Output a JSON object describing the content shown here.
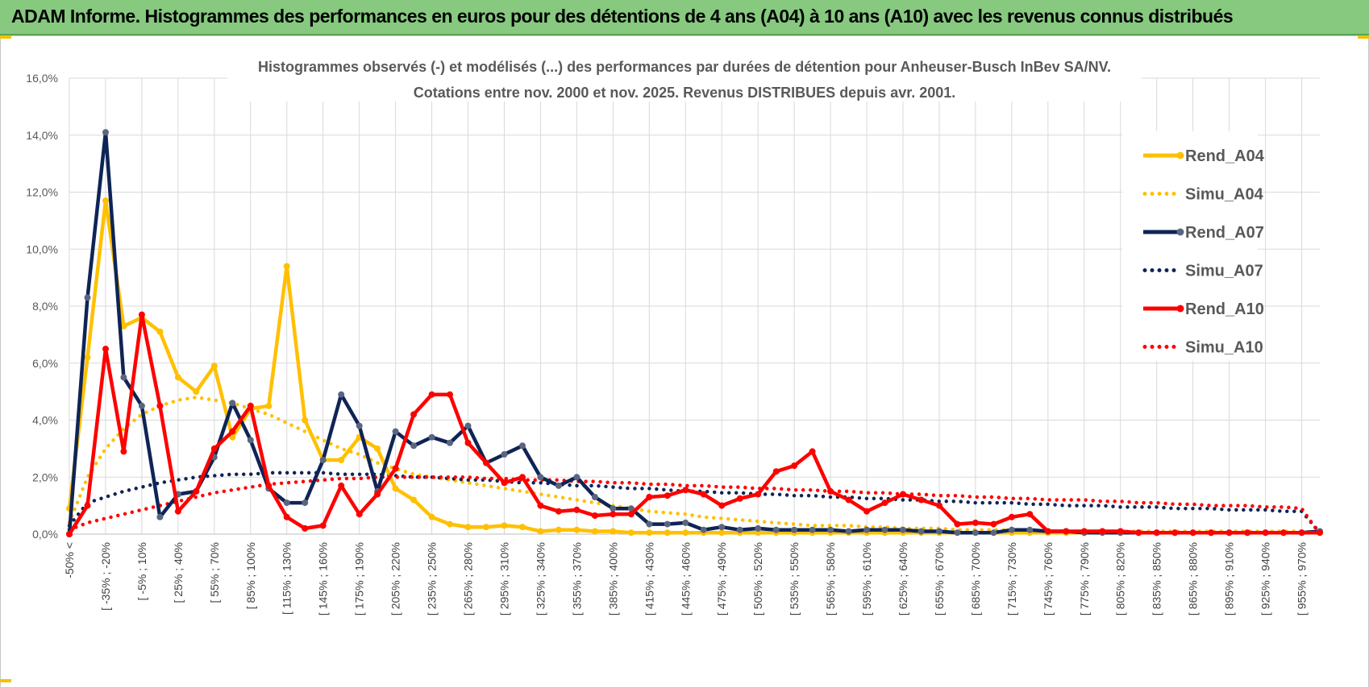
{
  "banner": {
    "title": "ADAM Informe. Histogrammes des performances en euros pour des détentions de 4 ans (A04) à 10 ans (A10) avec les revenus connus distribués"
  },
  "colors": {
    "banner_bg": "#86c97f",
    "a04": "#FFC000",
    "a07": "#0F2456",
    "a10": "#FF0000",
    "grid": "#D9D9D9"
  },
  "chart_data": {
    "type": "line",
    "title": "Histogrammes observés (-) et modélisés (...) des performances par durées de détention pour Anheuser-Busch InBev SA/NV.",
    "subtitle": "Cotations entre nov. 2000 et nov. 2025. Revenus DISTRIBUES depuis avr. 2001.",
    "ylim": [
      0,
      16
    ],
    "y_ticks": [
      "0,0%",
      "2,0%",
      "4,0%",
      "6,0%",
      "8,0%",
      "10,0%",
      "12,0%",
      "14,0%",
      "16,0%"
    ],
    "x_tick_labels": [
      "-50% <",
      "[ -35% ; -20%",
      "[ -5% ; 10%",
      "[ 25% ; 40%",
      "[ 55% ; 70%",
      "[ 85% ; 100%",
      "[ 115% ; 130%",
      "[ 145% ; 160%",
      "[ 175% ; 190%",
      "[ 205% ; 220%",
      "[ 235% ; 250%",
      "[ 265% ; 280%",
      "[ 295% ; 310%",
      "[ 325% ; 340%",
      "[ 355% ; 370%",
      "[ 385% ; 400%",
      "[ 415% ; 430%",
      "[ 445% ; 460%",
      "[ 475% ; 490%",
      "[ 505% ; 520%",
      "[ 535% ; 550%",
      "[ 565% ; 580%",
      "[ 595% ; 610%",
      "[ 625% ; 640%",
      "[ 655% ; 670%",
      "[ 685% ; 700%",
      "[ 715% ; 730%",
      "[ 745% ; 760%",
      "[ 775% ; 790%",
      "[ 805% ; 820%",
      "[ 835% ; 850%",
      "[ 865% ; 880%",
      "[ 895% ; 910%",
      "[ 925% ; 940%",
      "[ 955% ; 970%"
    ],
    "n_points": 70,
    "legend": [
      "Rend_A04",
      "Simu_A04",
      "Rend_A07",
      "Simu_A07",
      "Rend_A10",
      "Simu_A10"
    ],
    "series": [
      {
        "name": "Rend_A04",
        "style": "solid",
        "color": "#FFC000",
        "values": [
          0.9,
          6.2,
          11.7,
          7.3,
          7.6,
          7.1,
          5.5,
          5.0,
          5.9,
          3.4,
          4.4,
          4.5,
          9.4,
          4.0,
          2.6,
          2.6,
          3.4,
          3.0,
          1.6,
          1.2,
          0.6,
          0.35,
          0.25,
          0.25,
          0.3,
          0.25,
          0.1,
          0.15,
          0.15,
          0.1,
          0.1,
          0.05,
          0.05,
          0.05,
          0.05,
          0.05,
          0.05,
          0.05,
          0.05,
          0.05,
          0.05,
          0.05,
          0.05,
          0.05,
          0.05,
          0.05,
          0.05,
          0.05,
          0.05,
          0.05,
          0.05,
          0.05,
          0.05,
          0.05,
          0.05,
          0.05,
          0.05,
          0.05,
          0.05,
          0.05,
          0.05,
          0.05,
          0.05,
          0.05,
          0.05,
          0.05,
          0.05,
          0.05,
          0.05,
          0.05
        ]
      },
      {
        "name": "Simu_A04",
        "style": "dotted",
        "color": "#FFC000",
        "values": [
          0.4,
          2.0,
          3.0,
          3.7,
          4.2,
          4.5,
          4.7,
          4.8,
          4.7,
          4.6,
          4.4,
          4.2,
          3.9,
          3.6,
          3.3,
          3.0,
          2.8,
          2.5,
          2.3,
          2.1,
          2.0,
          1.9,
          1.8,
          1.7,
          1.6,
          1.5,
          1.4,
          1.3,
          1.2,
          1.1,
          1.0,
          0.9,
          0.8,
          0.75,
          0.7,
          0.6,
          0.55,
          0.5,
          0.45,
          0.4,
          0.35,
          0.3,
          0.3,
          0.3,
          0.25,
          0.25,
          0.2,
          0.2,
          0.2,
          0.15,
          0.15,
          0.15,
          0.15,
          0.1,
          0.1,
          0.1,
          0.1,
          0.1,
          0.1,
          0.1,
          0.1,
          0.1,
          0.1,
          0.1,
          0.1,
          0.1,
          0.1,
          0.1,
          0.1,
          0.05
        ]
      },
      {
        "name": "Rend_A07",
        "style": "solid",
        "color": "#0F2456",
        "values": [
          0.0,
          8.3,
          14.1,
          5.5,
          4.5,
          0.6,
          1.4,
          1.5,
          2.7,
          4.6,
          3.3,
          1.6,
          1.1,
          1.1,
          2.6,
          4.9,
          3.8,
          1.5,
          3.6,
          3.1,
          3.4,
          3.2,
          3.8,
          2.5,
          2.8,
          3.1,
          2.0,
          1.7,
          2.0,
          1.3,
          0.9,
          0.9,
          0.35,
          0.35,
          0.4,
          0.15,
          0.25,
          0.15,
          0.2,
          0.15,
          0.15,
          0.15,
          0.15,
          0.1,
          0.15,
          0.15,
          0.15,
          0.1,
          0.1,
          0.05,
          0.05,
          0.05,
          0.15,
          0.15,
          0.1,
          0.1,
          0.05,
          0.05,
          0.05,
          0.05,
          0.05,
          0.05,
          0.05,
          0.05,
          0.05,
          0.05,
          0.05,
          0.05,
          0.05,
          0.1
        ]
      },
      {
        "name": "Simu_A07",
        "style": "dotted",
        "color": "#0F2456",
        "values": [
          0.3,
          1.1,
          1.3,
          1.5,
          1.65,
          1.8,
          1.9,
          2.0,
          2.05,
          2.1,
          2.1,
          2.15,
          2.15,
          2.15,
          2.15,
          2.1,
          2.1,
          2.1,
          2.05,
          2.0,
          2.0,
          1.95,
          1.9,
          1.9,
          1.85,
          1.8,
          1.8,
          1.75,
          1.7,
          1.7,
          1.65,
          1.6,
          1.6,
          1.55,
          1.5,
          1.5,
          1.45,
          1.45,
          1.4,
          1.4,
          1.35,
          1.35,
          1.3,
          1.3,
          1.25,
          1.25,
          1.2,
          1.2,
          1.15,
          1.15,
          1.1,
          1.1,
          1.1,
          1.05,
          1.05,
          1.0,
          1.0,
          1.0,
          0.95,
          0.95,
          0.95,
          0.9,
          0.9,
          0.9,
          0.85,
          0.85,
          0.85,
          0.8,
          0.8,
          0.05
        ]
      },
      {
        "name": "Rend_A10",
        "style": "solid",
        "color": "#FF0000",
        "values": [
          0.0,
          1.0,
          6.5,
          2.9,
          7.7,
          4.5,
          0.8,
          1.5,
          3.0,
          3.6,
          4.5,
          1.7,
          0.6,
          0.2,
          0.3,
          1.7,
          0.7,
          1.4,
          2.3,
          4.2,
          4.9,
          4.9,
          3.2,
          2.5,
          1.8,
          2.0,
          1.0,
          0.8,
          0.85,
          0.65,
          0.7,
          0.7,
          1.3,
          1.35,
          1.55,
          1.4,
          1.0,
          1.25,
          1.4,
          2.2,
          2.4,
          2.9,
          1.5,
          1.2,
          0.8,
          1.1,
          1.4,
          1.2,
          1.0,
          0.35,
          0.4,
          0.35,
          0.6,
          0.7,
          0.1,
          0.1,
          0.1,
          0.1,
          0.1,
          0.05,
          0.05,
          0.05,
          0.05,
          0.05,
          0.05,
          0.05,
          0.05,
          0.05,
          0.05,
          0.05
        ]
      },
      {
        "name": "Simu_A10",
        "style": "dotted",
        "color": "#FF0000",
        "values": [
          0.15,
          0.4,
          0.55,
          0.7,
          0.85,
          1.0,
          1.15,
          1.3,
          1.45,
          1.55,
          1.65,
          1.75,
          1.8,
          1.85,
          1.9,
          1.95,
          1.95,
          2.0,
          2.0,
          2.0,
          2.0,
          2.0,
          2.0,
          1.95,
          1.95,
          1.9,
          1.9,
          1.9,
          1.85,
          1.85,
          1.8,
          1.8,
          1.75,
          1.75,
          1.7,
          1.7,
          1.65,
          1.65,
          1.6,
          1.6,
          1.55,
          1.55,
          1.5,
          1.5,
          1.45,
          1.45,
          1.4,
          1.4,
          1.35,
          1.35,
          1.3,
          1.3,
          1.25,
          1.25,
          1.2,
          1.2,
          1.2,
          1.15,
          1.15,
          1.1,
          1.1,
          1.05,
          1.05,
          1.0,
          1.0,
          1.0,
          0.95,
          0.95,
          0.9,
          0.0
        ]
      }
    ]
  }
}
